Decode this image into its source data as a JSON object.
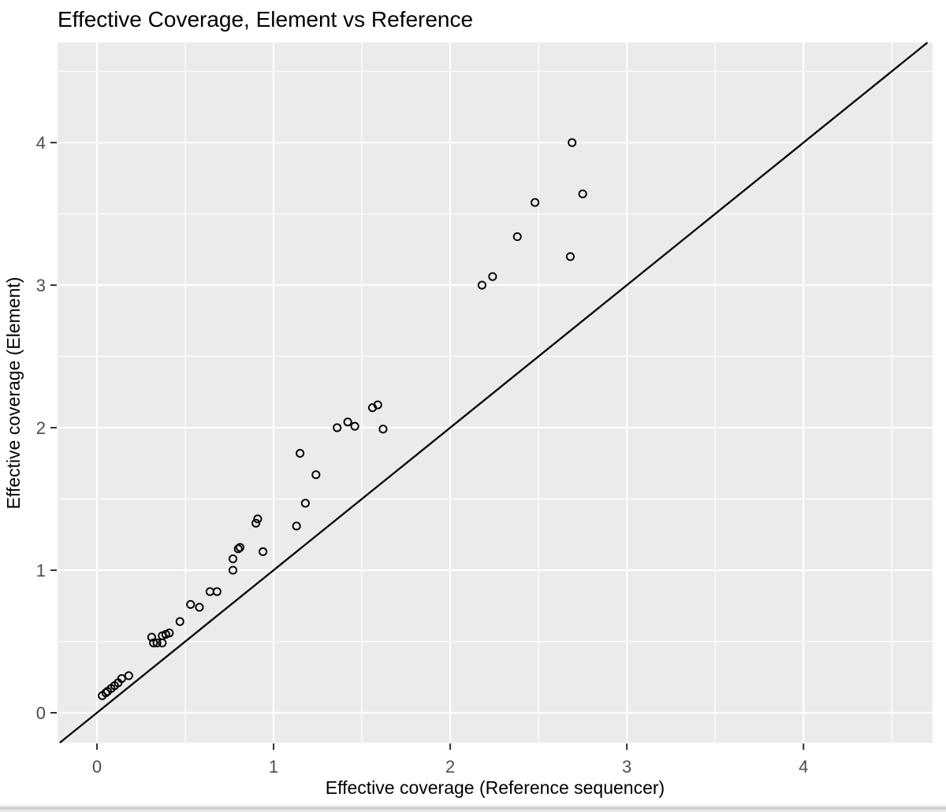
{
  "chart_data": {
    "type": "scatter",
    "title": "Effective Coverage, Element vs Reference",
    "xlabel": "Effective coverage (Reference sequencer)",
    "ylabel": "Effective coverage (Element)",
    "x_ticks": [
      0,
      1,
      2,
      3,
      4
    ],
    "y_ticks": [
      0,
      1,
      2,
      3,
      4
    ],
    "xlim": [
      -0.223,
      4.731
    ],
    "ylim": [
      -0.21,
      4.702
    ],
    "grid": {
      "major": true,
      "minor": true,
      "minor_step": 0.5
    },
    "legend": "none",
    "panel_bg": "#EBEBEB",
    "grid_color": "#FFFFFF",
    "tick_label_color": "#4D4D4D",
    "tick_mark_color": "#333333",
    "title_color": "#000000",
    "point_style": {
      "shape": "open-circle",
      "stroke": "#000000",
      "radius_px": 4.6
    },
    "reference_line": {
      "type": "identity y = x",
      "slope": 1,
      "intercept": 0,
      "color": "#000000"
    },
    "points": [
      [
        0.03,
        0.12
      ],
      [
        0.05,
        0.14
      ],
      [
        0.06,
        0.15
      ],
      [
        0.08,
        0.17
      ],
      [
        0.1,
        0.19
      ],
      [
        0.12,
        0.21
      ],
      [
        0.14,
        0.24
      ],
      [
        0.18,
        0.26
      ],
      [
        0.31,
        0.53
      ],
      [
        0.32,
        0.49
      ],
      [
        0.34,
        0.49
      ],
      [
        0.37,
        0.49
      ],
      [
        0.37,
        0.54
      ],
      [
        0.39,
        0.55
      ],
      [
        0.41,
        0.56
      ],
      [
        0.47,
        0.64
      ],
      [
        0.53,
        0.76
      ],
      [
        0.58,
        0.74
      ],
      [
        0.64,
        0.85
      ],
      [
        0.68,
        0.85
      ],
      [
        0.77,
        1.0
      ],
      [
        0.77,
        1.08
      ],
      [
        0.8,
        1.15
      ],
      [
        0.81,
        1.16
      ],
      [
        0.9,
        1.33
      ],
      [
        0.91,
        1.36
      ],
      [
        0.94,
        1.13
      ],
      [
        1.13,
        1.31
      ],
      [
        1.15,
        1.82
      ],
      [
        1.18,
        1.47
      ],
      [
        1.24,
        1.67
      ],
      [
        1.36,
        2.0
      ],
      [
        1.42,
        2.04
      ],
      [
        1.46,
        2.01
      ],
      [
        1.56,
        2.14
      ],
      [
        1.59,
        2.16
      ],
      [
        1.62,
        1.99
      ],
      [
        2.18,
        3.0
      ],
      [
        2.24,
        3.06
      ],
      [
        2.38,
        3.34
      ],
      [
        2.48,
        3.58
      ],
      [
        2.68,
        3.2
      ],
      [
        2.69,
        4.0
      ],
      [
        2.75,
        3.64
      ]
    ]
  }
}
